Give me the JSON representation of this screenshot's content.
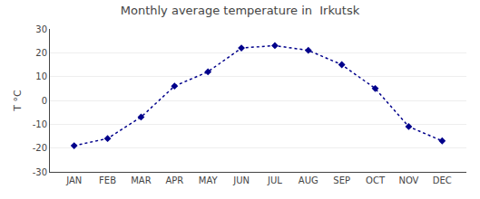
{
  "chart_data": {
    "type": "line",
    "title": "Monthly average temperature in  Irkutsk",
    "ylabel": "T °C",
    "categories": [
      "JAN",
      "FEB",
      "MAR",
      "APR",
      "MAY",
      "JUN",
      "JUL",
      "AUG",
      "SEP",
      "OCT",
      "NOV",
      "DEC"
    ],
    "values": [
      -19,
      -16,
      -7,
      6,
      12,
      22,
      23,
      21,
      15,
      5,
      -11,
      -17
    ],
    "color": "#00008B",
    "marker": "diamond",
    "line_style": "dotted",
    "ylim": [
      -30,
      30
    ],
    "yticks": [
      -30,
      -20,
      -10,
      0,
      10,
      20,
      30
    ],
    "grid": true
  }
}
